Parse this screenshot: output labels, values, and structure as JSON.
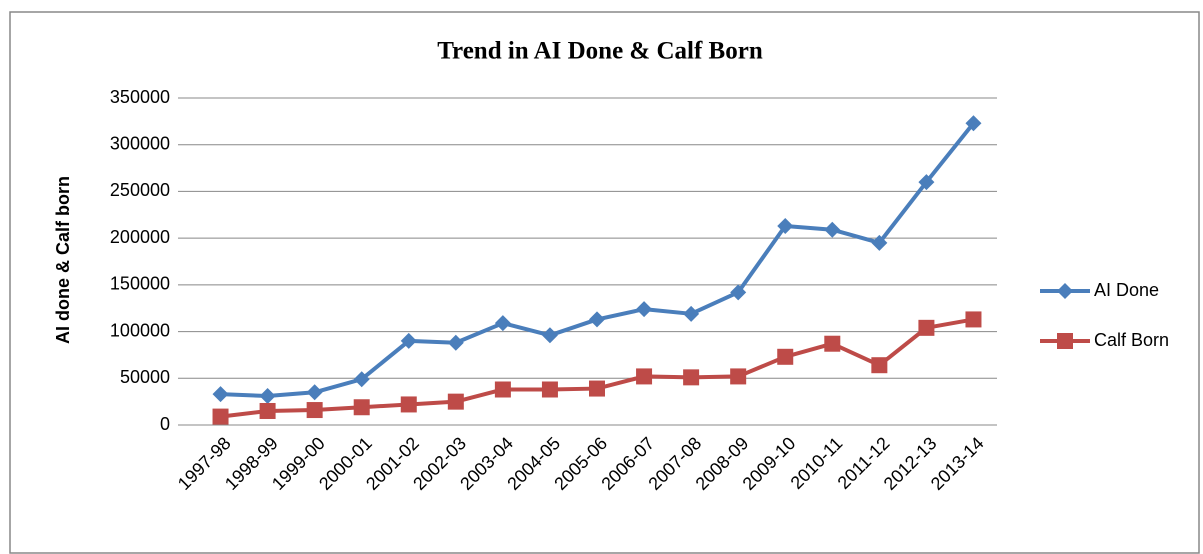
{
  "chart_data": {
    "type": "line",
    "title": "Trend in AI Done & Calf Born",
    "y_label": "AI done & Calf born",
    "categories": [
      "1997-98",
      "1998-99",
      "1999-00",
      "2000-01",
      "2001-02",
      "2002-03",
      "2003-04",
      "2004-05",
      "2005-06",
      "2006-07",
      "2007-08",
      "2008-09",
      "2009-10",
      "2010-11",
      "2011-12",
      "2012-13",
      "2013-14"
    ],
    "series": [
      {
        "name": "AI Done",
        "color": "#4a7ebb",
        "marker": "diamond",
        "values": [
          33000,
          31000,
          35000,
          49000,
          90000,
          88000,
          109000,
          96000,
          113000,
          124000,
          119000,
          142000,
          213000,
          209000,
          195000,
          260000,
          323000
        ]
      },
      {
        "name": "Calf Born",
        "color": "#be4b48",
        "marker": "square",
        "values": [
          9000,
          15000,
          16000,
          19000,
          22000,
          25000,
          38000,
          38000,
          39000,
          52000,
          51000,
          52000,
          73000,
          87000,
          64000,
          104000,
          113000
        ]
      }
    ],
    "ylim": [
      0,
      350000
    ],
    "yticks": [
      0,
      50000,
      100000,
      150000,
      200000,
      250000,
      300000,
      350000
    ],
    "grid": true,
    "legend": "right"
  }
}
